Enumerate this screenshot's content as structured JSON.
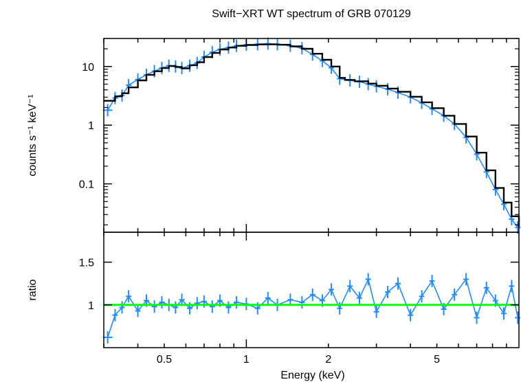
{
  "chart_data": [
    {
      "type": "line",
      "panel": "spectrum",
      "title": "Swift−XRT WT spectrum of GRB 070129",
      "ylabel": "counts s⁻¹ keV⁻¹",
      "xlabel": "",
      "xscale": "log",
      "yscale": "log",
      "xlim": [
        0.3,
        10
      ],
      "ylim": [
        0.015,
        30
      ],
      "yticks": [
        0.1,
        1,
        10
      ],
      "yticklabels": [
        "0.1",
        "1",
        "10"
      ],
      "grid": false,
      "series": [
        {
          "color": "#1e8cff",
          "x": [
            0.31,
            0.33,
            0.35,
            0.37,
            0.4,
            0.43,
            0.46,
            0.49,
            0.52,
            0.55,
            0.58,
            0.62,
            0.66,
            0.7,
            0.75,
            0.8,
            0.86,
            0.92,
            1.0,
            1.1,
            1.2,
            1.3,
            1.45,
            1.6,
            1.75,
            1.9,
            2.05,
            2.2,
            2.4,
            2.6,
            2.8,
            3.0,
            3.3,
            3.6,
            4.0,
            4.4,
            4.8,
            5.3,
            5.8,
            6.4,
            7.0,
            7.6,
            8.2,
            8.8,
            9.4,
            9.9
          ],
          "y": [
            1.8,
            2.9,
            3.2,
            4.8,
            6.0,
            7.2,
            8.3,
            9.4,
            10.3,
            10.0,
            9.4,
            10.3,
            11.5,
            14.5,
            17.5,
            19.5,
            21.0,
            22.5,
            23.5,
            24.0,
            24.5,
            24.0,
            22.5,
            20.5,
            16.0,
            12.5,
            9.5,
            6.2,
            5.8,
            5.5,
            5.0,
            4.6,
            4.1,
            3.6,
            3.0,
            2.4,
            1.9,
            1.45,
            1.05,
            0.62,
            0.32,
            0.16,
            0.08,
            0.045,
            0.025,
            0.018
          ]
        },
        {
          "color": "#000000",
          "x": [
            0.3,
            0.33,
            0.35,
            0.37,
            0.4,
            0.43,
            0.46,
            0.49,
            0.52,
            0.55,
            0.58,
            0.62,
            0.66,
            0.7,
            0.75,
            0.8,
            0.86,
            0.92,
            1.0,
            1.1,
            1.2,
            1.3,
            1.45,
            1.6,
            1.75,
            1.9,
            2.05,
            2.2,
            2.3,
            2.5,
            2.8,
            3.0,
            3.3,
            3.6,
            4.0,
            4.4,
            4.8,
            5.3,
            5.8,
            6.4,
            7.0,
            7.6,
            8.2,
            8.8,
            9.4,
            10.0
          ],
          "y": [
            2.6,
            3.1,
            3.5,
            4.4,
            5.8,
            7.2,
            8.3,
            9.4,
            10.2,
            9.8,
            9.3,
            10.5,
            11.8,
            14.5,
            17.0,
            19.5,
            21.0,
            22.5,
            23.2,
            23.7,
            23.8,
            23.5,
            22.0,
            20.0,
            16.5,
            13.0,
            10.0,
            6.4,
            5.9,
            5.6,
            5.1,
            4.7,
            4.2,
            3.7,
            3.05,
            2.45,
            1.95,
            1.45,
            1.05,
            0.64,
            0.34,
            0.17,
            0.085,
            0.048,
            0.028,
            0.018
          ]
        }
      ]
    },
    {
      "type": "line",
      "panel": "ratio",
      "xlabel": "Energy (keV)",
      "ylabel": "ratio",
      "xscale": "log",
      "xlim": [
        0.3,
        10
      ],
      "ylim": [
        0.5,
        1.85
      ],
      "yticks": [
        1,
        1.5
      ],
      "yticklabels": [
        "1",
        "1.5"
      ],
      "xticks": [
        0.5,
        1,
        2,
        5
      ],
      "xticklabels": [
        "0.5",
        "1",
        "2",
        "5"
      ],
      "grid": false,
      "series": [
        {
          "color": "#1e8cff",
          "x": [
            0.31,
            0.33,
            0.35,
            0.37,
            0.4,
            0.43,
            0.46,
            0.49,
            0.52,
            0.55,
            0.58,
            0.62,
            0.66,
            0.7,
            0.75,
            0.8,
            0.86,
            0.92,
            1.0,
            1.1,
            1.2,
            1.3,
            1.45,
            1.6,
            1.75,
            1.9,
            2.05,
            2.2,
            2.4,
            2.6,
            2.8,
            3.0,
            3.3,
            3.6,
            4.0,
            4.4,
            4.8,
            5.3,
            5.8,
            6.4,
            7.0,
            7.6,
            8.2,
            8.8,
            9.4,
            9.9
          ],
          "y": [
            0.62,
            0.88,
            0.97,
            1.1,
            0.93,
            1.05,
            0.98,
            1.03,
            1.0,
            0.97,
            1.06,
            0.96,
            1.02,
            1.04,
            0.98,
            1.05,
            0.97,
            1.03,
            1.01,
            0.96,
            1.08,
            1.0,
            1.06,
            1.03,
            1.12,
            1.05,
            1.18,
            0.96,
            1.22,
            1.08,
            1.3,
            0.92,
            1.15,
            1.25,
            0.88,
            1.1,
            1.28,
            0.95,
            1.12,
            1.3,
            0.85,
            1.2,
            1.05,
            0.9,
            1.22,
            0.85
          ]
        },
        {
          "color": "#00ff00",
          "x": [
            0.3,
            10
          ],
          "y": [
            1,
            1
          ]
        }
      ]
    }
  ]
}
